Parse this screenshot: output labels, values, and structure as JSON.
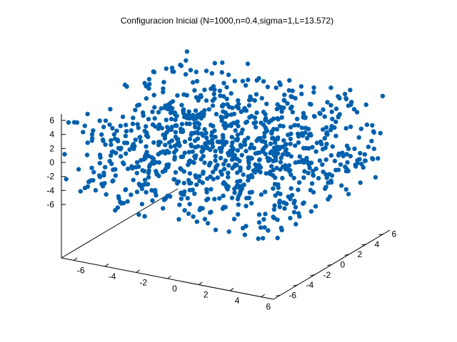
{
  "chart_data": {
    "type": "scatter",
    "title": "Configuracion Inicial (N=1000,n=0.4,sigma=1,L=13.572)",
    "n_points": 1000,
    "box_length": 13.572,
    "x_ticks": [
      "-6",
      "-4",
      "-2",
      "0",
      "2",
      "4",
      "6"
    ],
    "y_ticks": [
      "-6",
      "-4",
      "-2",
      "0",
      "2",
      "4",
      "6"
    ],
    "z_ticks": [
      "-6",
      "-4",
      "-2",
      "0",
      "2",
      "4",
      "6"
    ],
    "xlim": [
      -6.786,
      6.786
    ],
    "ylim": [
      -6.786,
      6.786
    ],
    "zlim": [
      -6.786,
      6.786
    ],
    "grid": false,
    "legend": "none",
    "marker_color": "#0060ad",
    "axis_color": "#000000"
  }
}
